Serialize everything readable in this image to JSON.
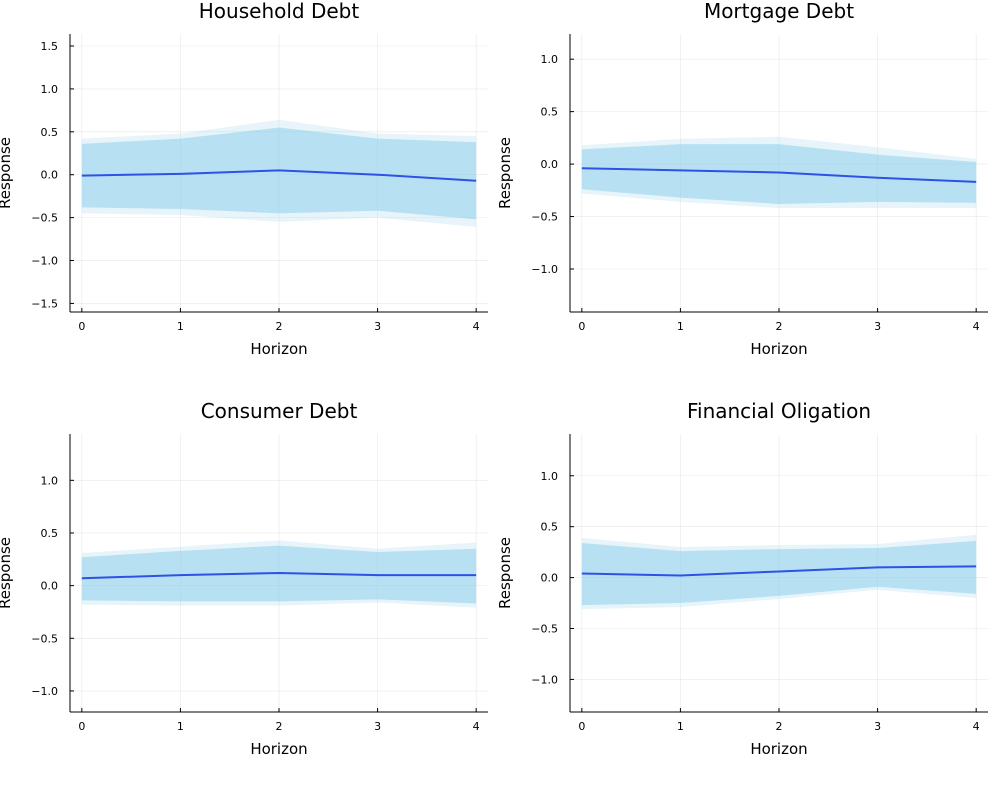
{
  "colors": {
    "line": "#2d52e6",
    "band": "#87ceeb"
  },
  "chart_data": [
    {
      "type": "line",
      "title": "Household Debt",
      "xlabel": "Horizon",
      "ylabel": "Response",
      "x": [
        0,
        1,
        2,
        3,
        4
      ],
      "xticks": [
        "0",
        "1",
        "2",
        "3",
        "4"
      ],
      "xlim": [
        -0.12,
        4.12
      ],
      "ylim": [
        -1.6,
        1.64
      ],
      "yticks": [
        -1.5,
        -1.0,
        -0.5,
        0.0,
        0.5,
        1.0,
        1.5
      ],
      "ytick_labels": [
        "−1.5",
        "−1.0",
        "−0.5",
        "0.0",
        "0.5",
        "1.0",
        "1.5"
      ],
      "grid": true,
      "legend": "none",
      "series": [
        {
          "role": "point_estimate",
          "values": [
            -0.01,
            0.01,
            0.05,
            0.0,
            -0.07
          ]
        },
        {
          "role": "inner_band",
          "lower": [
            -0.38,
            -0.4,
            -0.45,
            -0.42,
            -0.52
          ],
          "upper": [
            0.36,
            0.42,
            0.55,
            0.42,
            0.38
          ]
        },
        {
          "role": "outer_band",
          "lower": [
            -0.45,
            -0.47,
            -0.55,
            -0.5,
            -0.61
          ],
          "upper": [
            0.42,
            0.48,
            0.64,
            0.48,
            0.45
          ]
        }
      ]
    },
    {
      "type": "line",
      "title": "Mortgage Debt",
      "xlabel": "Horizon",
      "ylabel": "Response",
      "x": [
        0,
        1,
        2,
        3,
        4
      ],
      "xticks": [
        "0",
        "1",
        "2",
        "3",
        "4"
      ],
      "xlim": [
        -0.12,
        4.12
      ],
      "ylim": [
        -1.41,
        1.24
      ],
      "yticks": [
        -1.0,
        -0.5,
        0.0,
        0.5,
        1.0
      ],
      "ytick_labels": [
        "−1.0",
        "−0.5",
        "0.0",
        "0.5",
        "1.0"
      ],
      "grid": true,
      "legend": "none",
      "series": [
        {
          "role": "point_estimate",
          "values": [
            -0.04,
            -0.06,
            -0.08,
            -0.13,
            -0.17
          ]
        },
        {
          "role": "inner_band",
          "lower": [
            -0.24,
            -0.32,
            -0.38,
            -0.36,
            -0.37
          ],
          "upper": [
            0.14,
            0.19,
            0.19,
            0.09,
            0.02
          ]
        },
        {
          "role": "outer_band",
          "lower": [
            -0.28,
            -0.36,
            -0.42,
            -0.42,
            -0.42
          ],
          "upper": [
            0.18,
            0.24,
            0.26,
            0.16,
            0.05
          ]
        }
      ]
    },
    {
      "type": "line",
      "title": "Consumer Debt",
      "xlabel": "Horizon",
      "ylabel": "Response",
      "x": [
        0,
        1,
        2,
        3,
        4
      ],
      "xticks": [
        "0",
        "1",
        "2",
        "3",
        "4"
      ],
      "xlim": [
        -0.12,
        4.12
      ],
      "ylim": [
        -1.2,
        1.44
      ],
      "yticks": [
        -1.0,
        -0.5,
        0.0,
        0.5,
        1.0
      ],
      "ytick_labels": [
        "−1.0",
        "−0.5",
        "0.0",
        "0.5",
        "1.0"
      ],
      "grid": true,
      "legend": "none",
      "series": [
        {
          "role": "point_estimate",
          "values": [
            0.07,
            0.1,
            0.12,
            0.1,
            0.1
          ]
        },
        {
          "role": "inner_band",
          "lower": [
            -0.14,
            -0.15,
            -0.15,
            -0.13,
            -0.17
          ],
          "upper": [
            0.27,
            0.33,
            0.38,
            0.32,
            0.35
          ]
        },
        {
          "role": "outer_band",
          "lower": [
            -0.18,
            -0.19,
            -0.19,
            -0.16,
            -0.21
          ],
          "upper": [
            0.31,
            0.37,
            0.43,
            0.35,
            0.41
          ]
        }
      ]
    },
    {
      "type": "line",
      "title": "Financial Oligation",
      "xlabel": "Horizon",
      "ylabel": "Response",
      "x": [
        0,
        1,
        2,
        3,
        4
      ],
      "xticks": [
        "0",
        "1",
        "2",
        "3",
        "4"
      ],
      "xlim": [
        -0.12,
        4.12
      ],
      "ylim": [
        -1.32,
        1.41
      ],
      "yticks": [
        -1.0,
        -0.5,
        0.0,
        0.5,
        1.0
      ],
      "ytick_labels": [
        "−1.0",
        "−0.5",
        "0.0",
        "0.5",
        "1.0"
      ],
      "grid": true,
      "legend": "none",
      "series": [
        {
          "role": "point_estimate",
          "values": [
            0.04,
            0.02,
            0.06,
            0.1,
            0.11
          ]
        },
        {
          "role": "inner_band",
          "lower": [
            -0.27,
            -0.25,
            -0.18,
            -0.09,
            -0.16
          ],
          "upper": [
            0.34,
            0.26,
            0.28,
            0.29,
            0.36
          ]
        },
        {
          "role": "outer_band",
          "lower": [
            -0.31,
            -0.29,
            -0.21,
            -0.12,
            -0.2
          ],
          "upper": [
            0.39,
            0.3,
            0.32,
            0.33,
            0.42
          ]
        }
      ]
    }
  ]
}
